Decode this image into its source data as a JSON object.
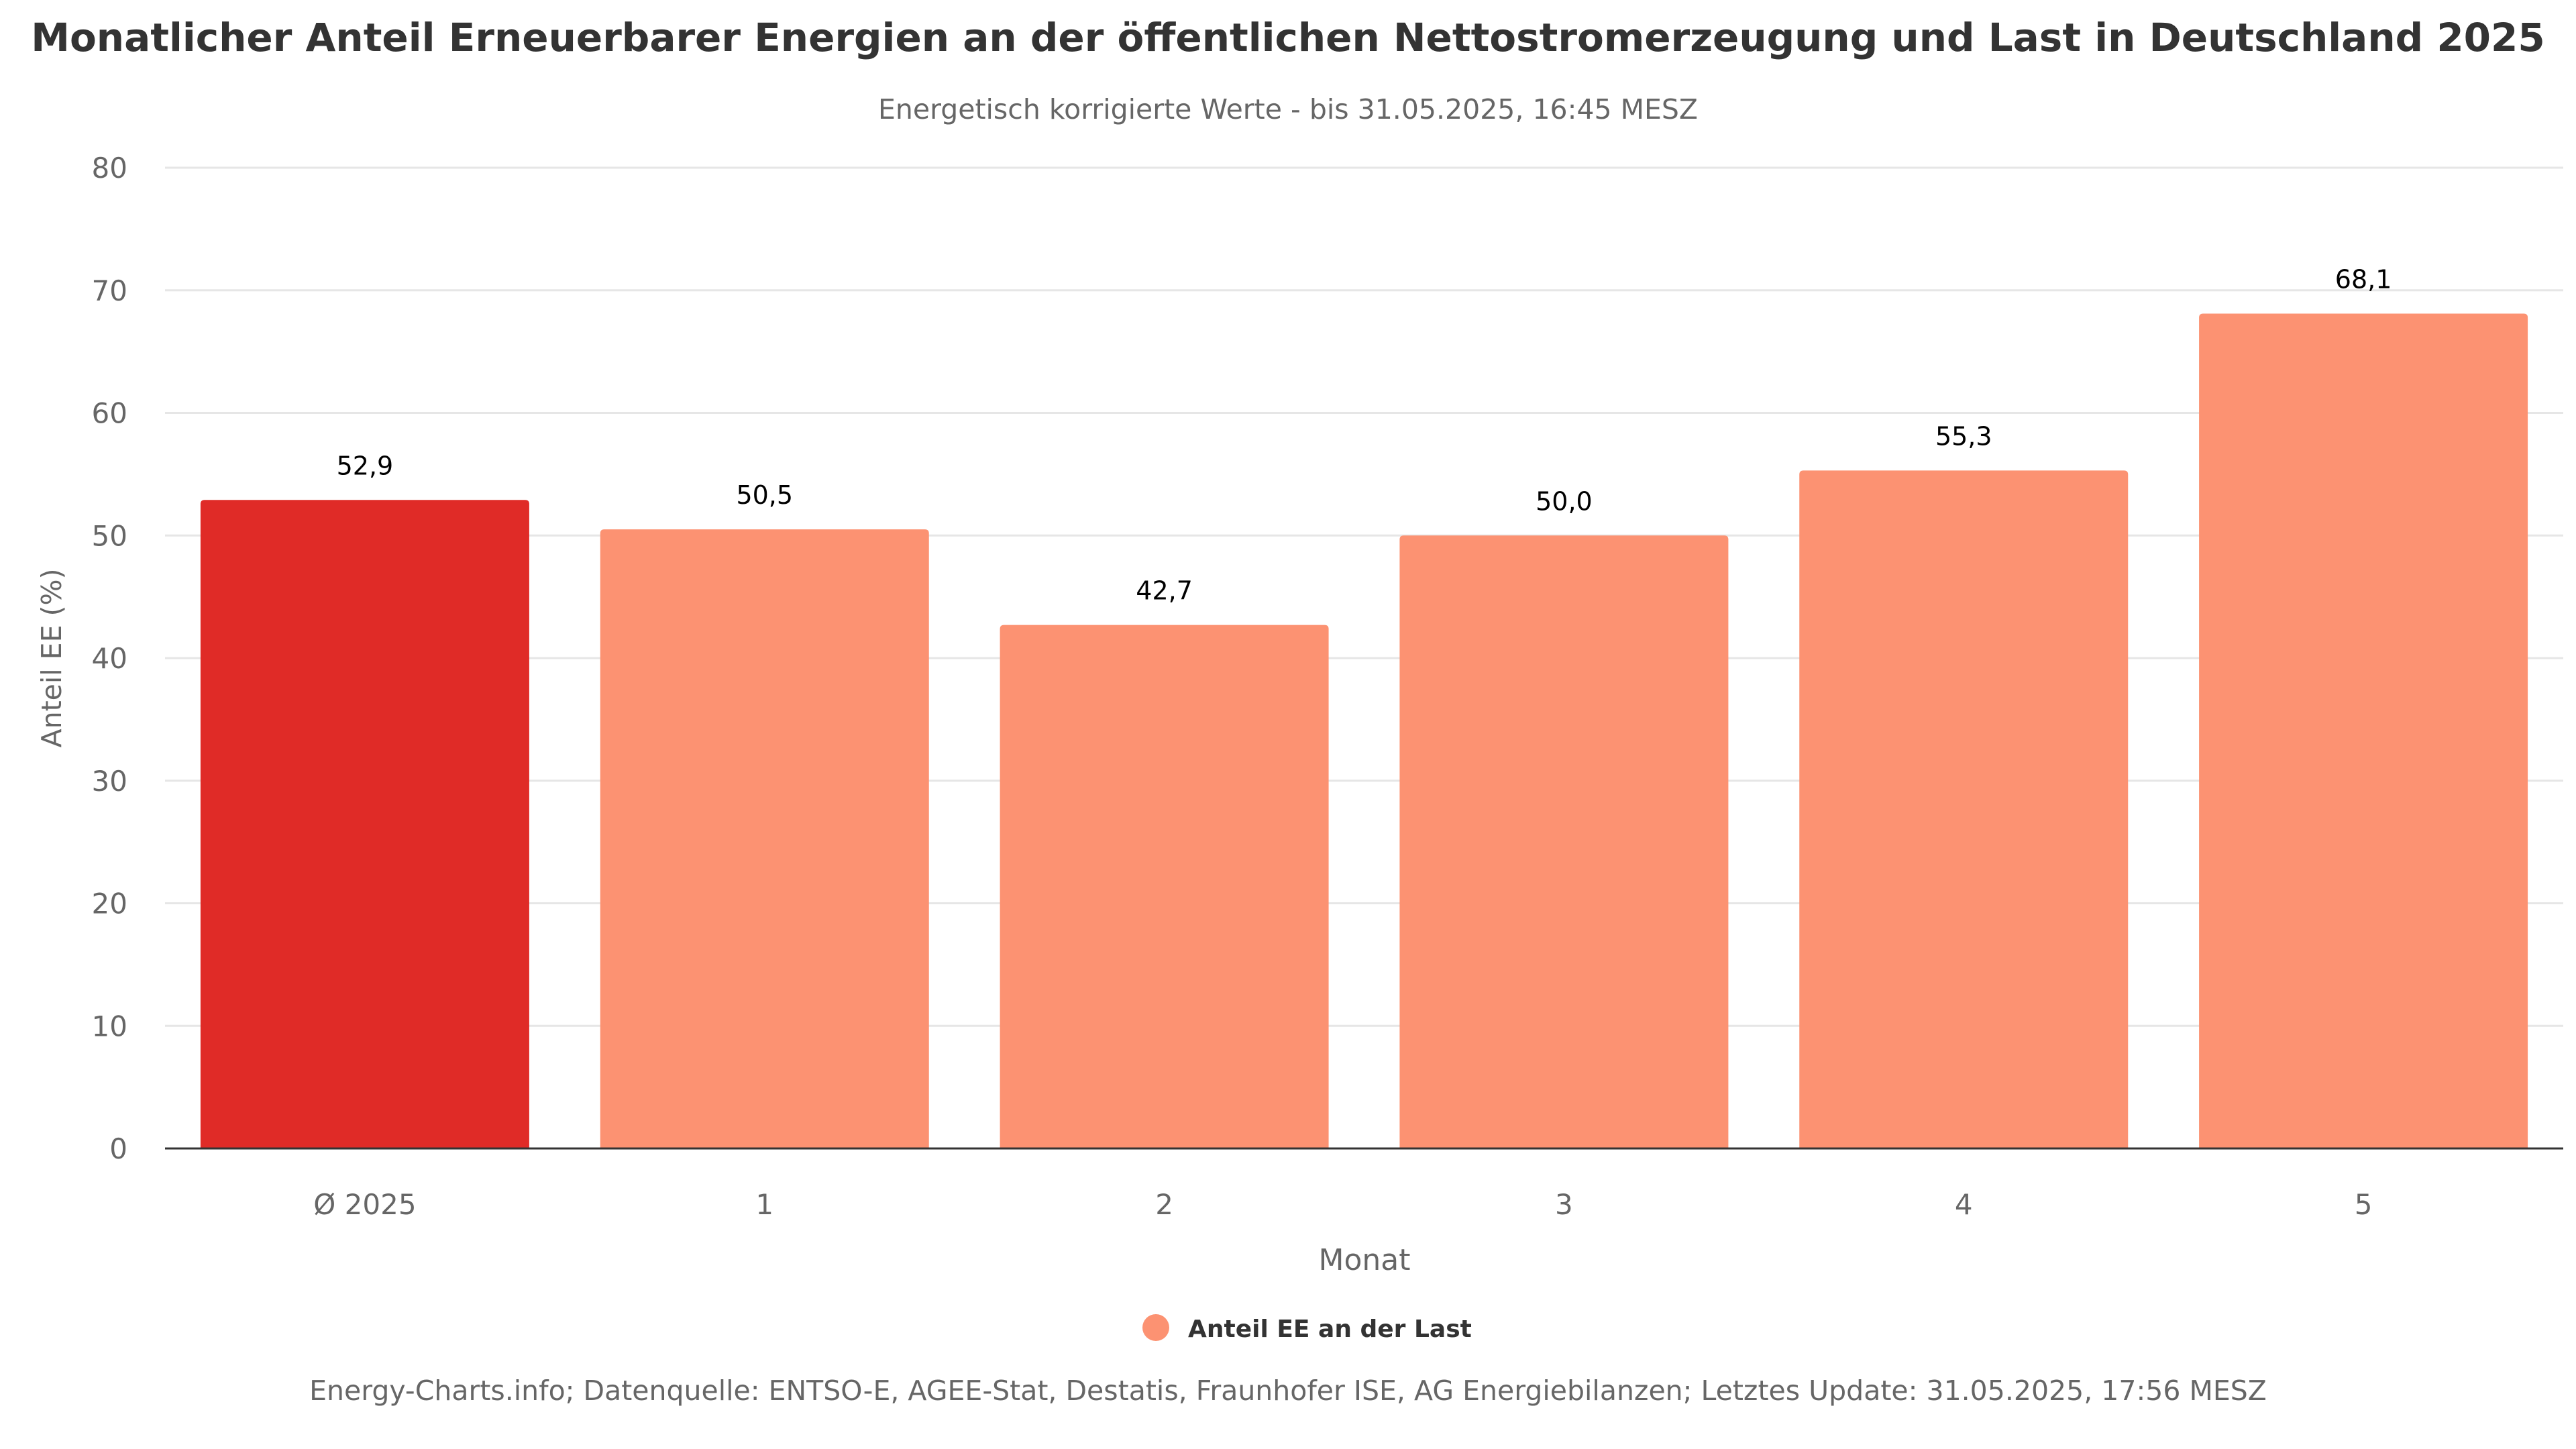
{
  "chart_data": {
    "type": "bar",
    "title": "Monatlicher Anteil Erneuerbarer Energien an der öffentlichen Nettostromerzeugung und Last in Deutschland 2025",
    "subtitle": "Energetisch korrigierte Werte - bis 31.05.2025, 16:45 MESZ",
    "xlabel": "Monat",
    "ylabel": "Anteil EE (%)",
    "ylim": [
      0,
      80
    ],
    "yticks": [
      "0",
      "10",
      "20",
      "30",
      "40",
      "50",
      "60",
      "70",
      "80"
    ],
    "ytick_values": [
      0,
      10,
      20,
      30,
      40,
      50,
      60,
      70,
      80
    ],
    "grid": true,
    "legend_position": "bottom-center",
    "categories": [
      "Ø 2025",
      "1",
      "2",
      "3",
      "4",
      "5"
    ],
    "series": [
      {
        "name": "Anteil EE an der Last",
        "values": [
          52.9,
          50.5,
          42.7,
          50.0,
          55.3,
          68.1
        ],
        "labels": [
          "52,9",
          "50,5",
          "42,7",
          "50,0",
          "55,3",
          "68,1"
        ],
        "color": "#fc9272",
        "highlight_index": 0,
        "highlight_color": "#e02b27"
      }
    ],
    "credits": "Energy-Charts.info; Datenquelle: ENTSO-E, AGEE-Stat, Destatis, Fraunhofer ISE, AG Energiebilanzen; Letztes Update: 31.05.2025, 17:56 MESZ"
  }
}
